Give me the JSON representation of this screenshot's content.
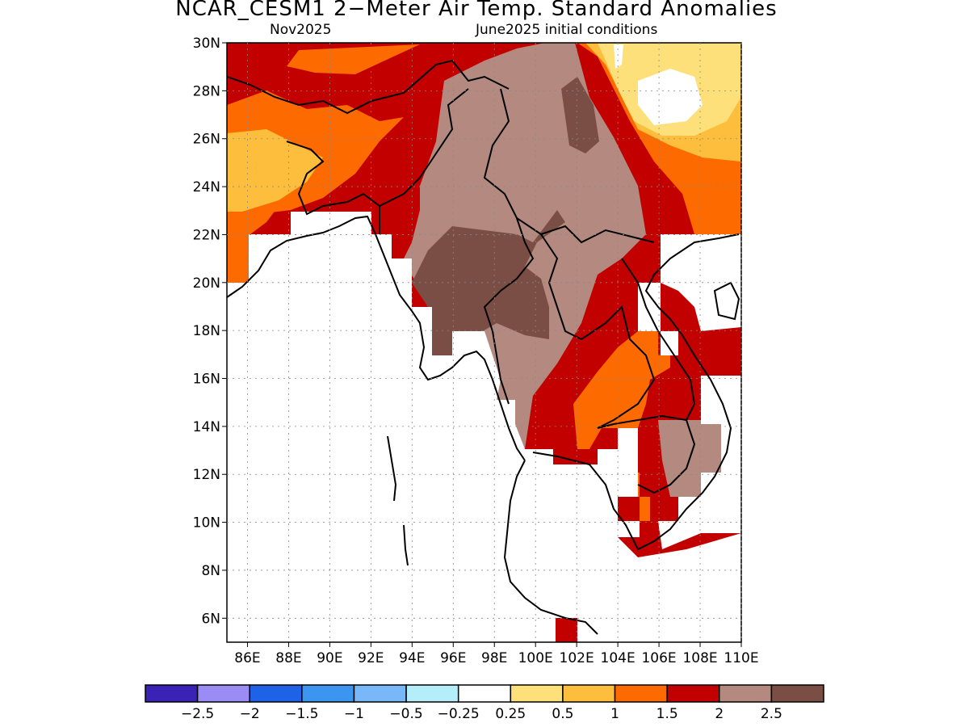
{
  "title": "NCAR_CESM1 2−Meter Air Temp. Standard Anomalies",
  "subtitle_left": "Nov2025",
  "subtitle_right": "June2025 initial conditions",
  "lat_labels": [
    "30N",
    "28N",
    "26N",
    "24N",
    "22N",
    "20N",
    "18N",
    "16N",
    "14N",
    "12N",
    "10N",
    "8N",
    "6N"
  ],
  "lon_labels": [
    "86E",
    "88E",
    "90E",
    "92E",
    "94E",
    "96E",
    "98E",
    "100E",
    "102E",
    "104E",
    "106E",
    "108E",
    "110E"
  ],
  "colorbar": {
    "colors": [
      "#3a22b4",
      "#9b8cf5",
      "#1e62e6",
      "#3c96f0",
      "#78b8f8",
      "#b4eefa",
      "#ffffff",
      "#fde07a",
      "#fdbe3e",
      "#fd6a00",
      "#c30000",
      "#b48a80",
      "#7a4e44"
    ],
    "labels": [
      "−2.5",
      "−2",
      "−1.5",
      "−1",
      "−0.5",
      "−0.25",
      "0.25",
      "0.5",
      "1",
      "1.5",
      "2",
      "2.5"
    ]
  },
  "map_colors": {
    "yellow": "#fde07a",
    "light_orange": "#fdbe3e",
    "orange": "#fd6a00",
    "red": "#c30000",
    "light_brown": "#b48a80",
    "dark_brown": "#7a4e44"
  }
}
